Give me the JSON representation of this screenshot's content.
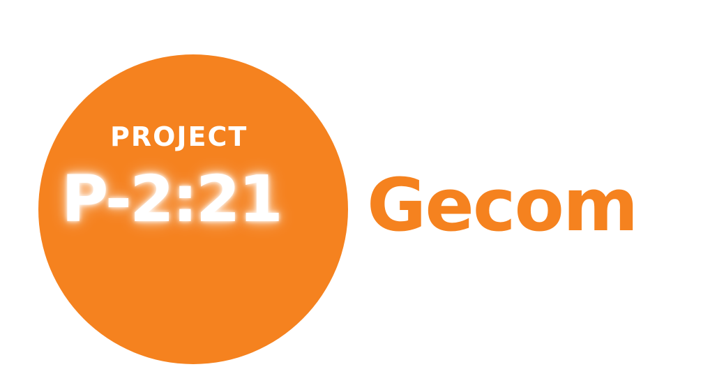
{
  "logo": {
    "circle_color": "#F5821F",
    "text_color": "#FFFFFF",
    "project_label": "PROJECT",
    "project_code": "P-2:21",
    "brand_name": "Gecom",
    "brand_color": "#F5821F"
  }
}
